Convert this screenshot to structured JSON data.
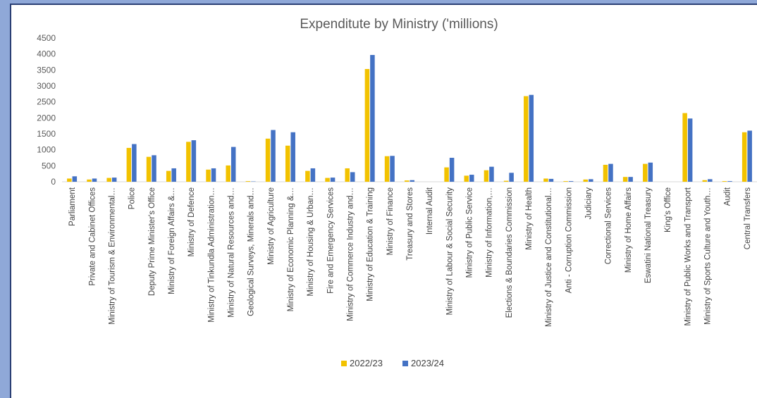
{
  "chart_data": {
    "type": "bar",
    "title": "Expenditute by Ministry ('millions)",
    "xlabel": "",
    "ylabel": "",
    "ylim": [
      0,
      4500
    ],
    "yticks": [
      0,
      500,
      1000,
      1500,
      2000,
      2500,
      3000,
      3500,
      4000,
      4500
    ],
    "grid": false,
    "legend_position": "bottom",
    "categories": [
      "Parliament",
      "Private and Cabinet Offices",
      "Ministry of Tourism & Environmental…",
      "Police",
      "Deputy Prime Minister's Office",
      "Ministry of Foreign Affairs &…",
      "Ministry of Defence",
      "Ministry of Tinkundla Administration…",
      "Ministry of Natural Resources and…",
      "Geological Surveys, Minerals and…",
      "Ministry of Agriculture",
      "Ministry of Economic Planning &…",
      "Ministry of Housing & Urban…",
      "Fire and Emergency Services",
      "Ministry of Commerce Industry and…",
      "Ministry of Education & Training",
      "Ministry of Finance",
      "Treasury and Stores",
      "Internal Audit",
      "Ministry of Labour & Social Security",
      "Ministry of Public Service",
      "Ministry of Information,…",
      "Elections & Boundaries Commission",
      "Ministry of Health",
      "Ministry of Justice and Constitutional…",
      "Anti - Corruption Commission",
      "Judiciary",
      "Correctional Services",
      "Ministry of Home Affairs",
      "Eswatini National Treasury",
      "King's Office",
      "Ministry of Public Works and Transport",
      "Ministry of Sports Culture and Youth…",
      "Audit",
      "Central Transfers"
    ],
    "series": [
      {
        "name": "2022/23",
        "color": "#f2c200",
        "values": [
          100,
          70,
          120,
          1060,
          780,
          340,
          1250,
          380,
          510,
          20,
          1350,
          1130,
          340,
          120,
          420,
          3530,
          800,
          40,
          0,
          450,
          190,
          360,
          30,
          2680,
          100,
          20,
          70,
          530,
          150,
          560,
          0,
          2150,
          50,
          20,
          1550
        ]
      },
      {
        "name": "2023/24",
        "color": "#4472c4",
        "values": [
          170,
          100,
          130,
          1180,
          830,
          420,
          1300,
          420,
          1090,
          10,
          1620,
          1550,
          420,
          130,
          300,
          3970,
          810,
          50,
          0,
          750,
          220,
          470,
          280,
          2720,
          90,
          20,
          80,
          560,
          150,
          600,
          0,
          1980,
          80,
          20,
          1600
        ]
      }
    ]
  }
}
